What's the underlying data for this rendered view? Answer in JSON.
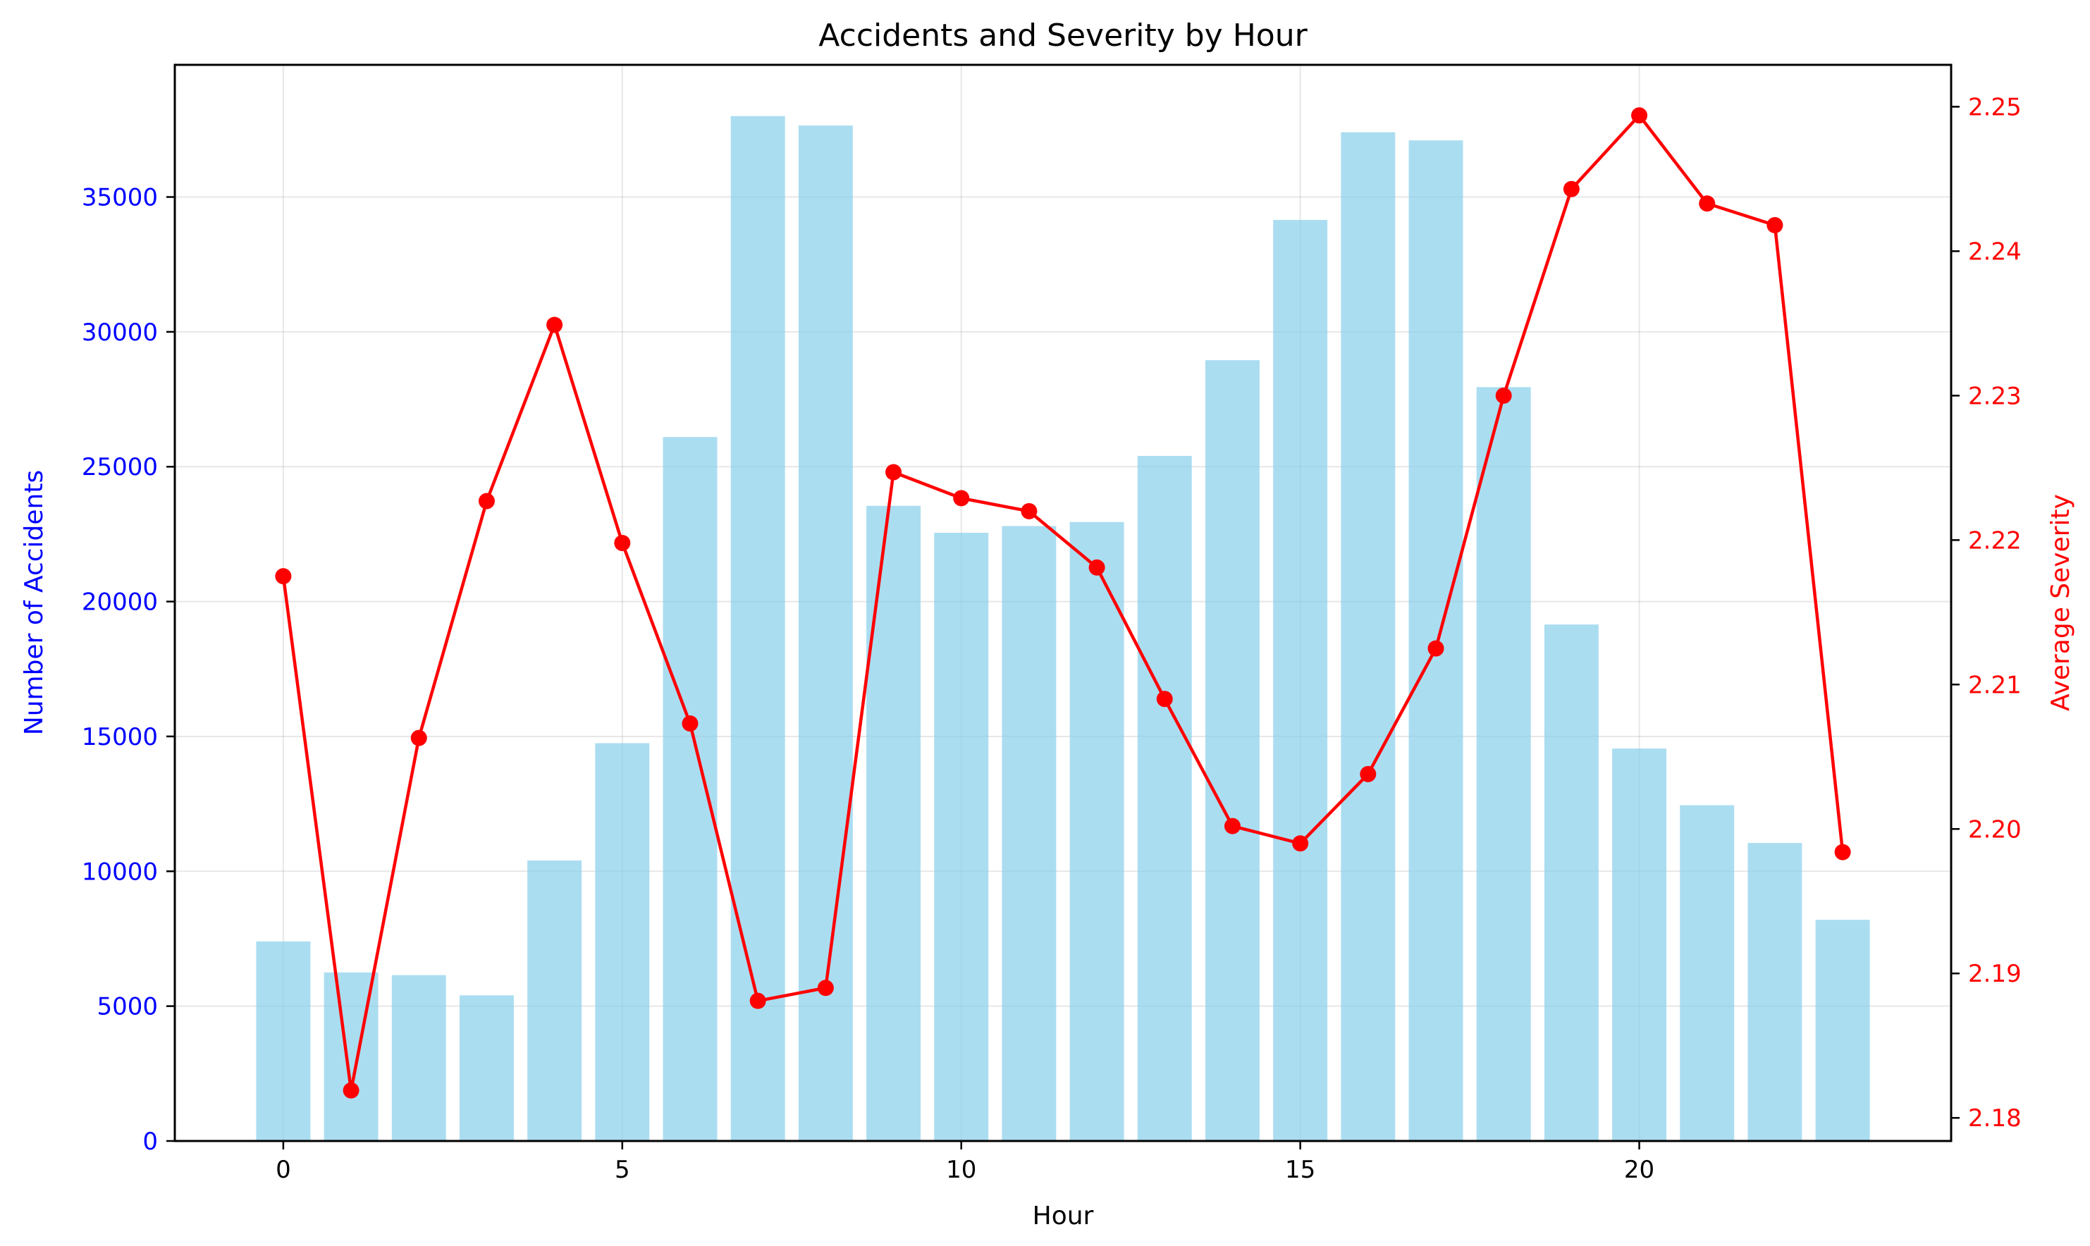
{
  "chart_data": {
    "type": "bar+line",
    "title": "Accidents and Severity by Hour",
    "xlabel": "Hour",
    "ylabel_left": "Number of Accidents",
    "ylabel_right": "Average Severity",
    "x": [
      0,
      1,
      2,
      3,
      4,
      5,
      6,
      7,
      8,
      9,
      10,
      11,
      12,
      13,
      14,
      15,
      16,
      17,
      18,
      19,
      20,
      21,
      22,
      23
    ],
    "xlim": [
      -1.6,
      24.6
    ],
    "xticks": [
      0,
      5,
      10,
      15,
      20
    ],
    "xtick_labels": [
      "0",
      "5",
      "10",
      "15",
      "20"
    ],
    "grid": true,
    "series": [
      {
        "name": "Number of Accidents",
        "type": "bar",
        "axis": "left",
        "color": "#87CEEB",
        "values": [
          7400,
          6250,
          6150,
          5400,
          10400,
          14750,
          26100,
          38000,
          37650,
          23550,
          22550,
          22800,
          22950,
          25400,
          28950,
          34150,
          37400,
          37100,
          27950,
          19150,
          14550,
          12450,
          11050,
          8200
        ]
      },
      {
        "name": "Average Severity",
        "type": "line",
        "axis": "right",
        "color": "#ff0000",
        "values": [
          2.2175,
          2.1819,
          2.2063,
          2.2227,
          2.2349,
          2.2198,
          2.2073,
          2.1881,
          2.189,
          2.2247,
          2.2229,
          2.222,
          2.2181,
          2.209,
          2.2002,
          2.199,
          2.2038,
          2.2125,
          2.23,
          2.2443,
          2.2494,
          2.2433,
          2.2418,
          2.1984
        ]
      }
    ],
    "left_axis": {
      "ylim": [
        0,
        39900
      ],
      "ticks": [
        0,
        5000,
        10000,
        15000,
        20000,
        25000,
        30000,
        35000
      ],
      "tick_labels": [
        "0",
        "5000",
        "10000",
        "15000",
        "20000",
        "25000",
        "30000",
        "35000"
      ],
      "color": "#0000ff"
    },
    "right_axis": {
      "ylim": [
        2.1784,
        2.2529
      ],
      "ticks": [
        2.18,
        2.19,
        2.2,
        2.21,
        2.22,
        2.23,
        2.24,
        2.25
      ],
      "tick_labels": [
        "2.18",
        "2.19",
        "2.20",
        "2.21",
        "2.22",
        "2.23",
        "2.24",
        "2.25"
      ],
      "color": "#ff0000"
    }
  }
}
